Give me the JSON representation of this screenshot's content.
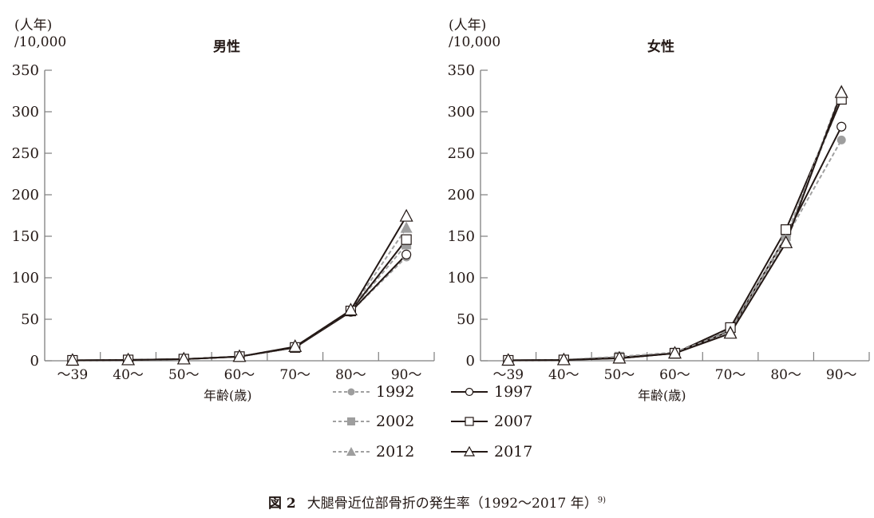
{
  "chart_data": [
    {
      "type": "line",
      "title": "男性",
      "ylabel": "(人年)/10,000",
      "xlabel": "年齢(歳)",
      "ylim": [
        0,
        350
      ],
      "yticks": [
        0,
        50,
        100,
        150,
        200,
        250,
        300,
        350
      ],
      "categories": [
        "～39",
        "40～",
        "50～",
        "60～",
        "70～",
        "80～",
        "90～"
      ],
      "series": [
        {
          "name": "1992",
          "style": "dashed-gray",
          "marker": "filled-circle",
          "values": [
            0.5,
            1,
            2,
            5,
            16,
            59,
            125
          ]
        },
        {
          "name": "1997",
          "style": "solid-black",
          "marker": "open-circle",
          "values": [
            0.5,
            1,
            2,
            5,
            16,
            59,
            128
          ]
        },
        {
          "name": "2002",
          "style": "dashed-gray",
          "marker": "filled-square",
          "values": [
            0.5,
            1,
            2,
            5,
            16,
            60,
            140
          ]
        },
        {
          "name": "2007",
          "style": "solid-black",
          "marker": "open-square",
          "values": [
            0.5,
            1,
            2,
            5,
            16,
            60,
            146
          ]
        },
        {
          "name": "2012",
          "style": "dashed-gray",
          "marker": "filled-triangle",
          "values": [
            0.5,
            1,
            2,
            5,
            17,
            61,
            160
          ]
        },
        {
          "name": "2017",
          "style": "solid-black",
          "marker": "open-triangle",
          "values": [
            0.5,
            1,
            2,
            5,
            17,
            61,
            174
          ]
        }
      ],
      "grid": false,
      "legend_position": "bottom-center"
    },
    {
      "type": "line",
      "title": "女性",
      "ylabel": "(人年)/10,000",
      "xlabel": "年齢(歳)",
      "ylim": [
        0,
        350
      ],
      "yticks": [
        0,
        50,
        100,
        150,
        200,
        250,
        300,
        350
      ],
      "categories": [
        "～39",
        "40～",
        "50～",
        "60～",
        "70～",
        "80～",
        "90～"
      ],
      "series": [
        {
          "name": "1992",
          "style": "dashed-gray",
          "marker": "filled-circle",
          "values": [
            0.5,
            1,
            5,
            10,
            38,
            148,
            266
          ]
        },
        {
          "name": "1997",
          "style": "solid-black",
          "marker": "open-circle",
          "values": [
            0.5,
            1,
            4,
            9,
            36,
            150,
            282
          ]
        },
        {
          "name": "2002",
          "style": "dashed-gray",
          "marker": "filled-square",
          "values": [
            0.5,
            1,
            5,
            10,
            38,
            150,
            316
          ]
        },
        {
          "name": "2007",
          "style": "solid-black",
          "marker": "open-square",
          "values": [
            0.5,
            1,
            3,
            9,
            40,
            158,
            315
          ]
        },
        {
          "name": "2012",
          "style": "dashed-gray",
          "marker": "filled-triangle",
          "values": [
            0.5,
            1,
            4,
            10,
            35,
            145,
            325
          ]
        },
        {
          "name": "2017",
          "style": "solid-black",
          "marker": "open-triangle",
          "values": [
            0.5,
            1,
            3,
            9,
            33,
            142,
            323
          ]
        }
      ],
      "grid": false,
      "legend_position": "bottom-center"
    }
  ],
  "panels": {
    "male": {
      "unit_line1": "(人年)",
      "unit_line2": "/10,000",
      "title": "男性",
      "xlabel": "年齢(歳)"
    },
    "female": {
      "unit_line1": "(人年)",
      "unit_line2": "/10,000",
      "title": "女性",
      "xlabel": "年齢(歳)"
    }
  },
  "legend": {
    "items": [
      {
        "label": "1992"
      },
      {
        "label": "1997"
      },
      {
        "label": "2002"
      },
      {
        "label": "2007"
      },
      {
        "label": "2012"
      },
      {
        "label": "2017"
      }
    ]
  },
  "caption": {
    "figure_label": "図 2",
    "text": "大腿骨近位部骨折の発生率（1992～2017 年）",
    "ref": "9)"
  },
  "colors": {
    "axis": "#7f7f7f",
    "solid_line": "#231815",
    "dashed_line": "#a0a0a0",
    "filled_marker": "#9e9e9e"
  }
}
